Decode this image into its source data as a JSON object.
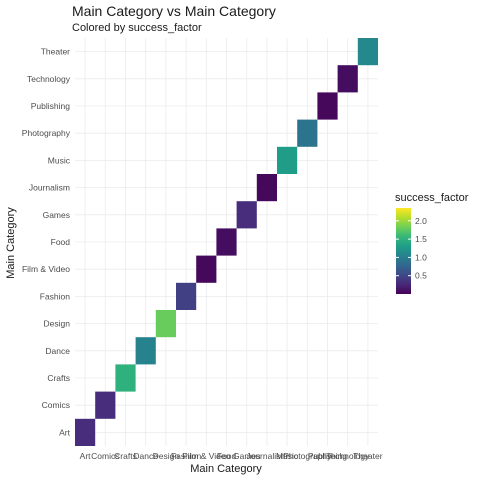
{
  "chart_data": {
    "type": "heatmap",
    "title": "Main Category vs Main Category",
    "subtitle": "Colored by success_factor",
    "xlabel": "Main Category",
    "ylabel": "Main Category",
    "categories": [
      "Art",
      "Comics",
      "Crafts",
      "Dance",
      "Design",
      "Fashion",
      "Film & Video",
      "Food",
      "Games",
      "Journalism",
      "Music",
      "Photography",
      "Publishing",
      "Technology",
      "Theater"
    ],
    "cells": [
      {
        "x": "Art",
        "y": "Art",
        "value": 0.3
      },
      {
        "x": "Comics",
        "y": "Comics",
        "value": 0.3
      },
      {
        "x": "Crafts",
        "y": "Crafts",
        "value": 1.5
      },
      {
        "x": "Dance",
        "y": "Dance",
        "value": 1.05
      },
      {
        "x": "Design",
        "y": "Design",
        "value": 1.8
      },
      {
        "x": "Fashion",
        "y": "Fashion",
        "value": 0.45
      },
      {
        "x": "Film & Video",
        "y": "Film & Video",
        "value": 0.05
      },
      {
        "x": "Food",
        "y": "Food",
        "value": 0.08
      },
      {
        "x": "Games",
        "y": "Games",
        "value": 0.3
      },
      {
        "x": "Journalism",
        "y": "Journalism",
        "value": 0.05
      },
      {
        "x": "Music",
        "y": "Music",
        "value": 1.3
      },
      {
        "x": "Photography",
        "y": "Photography",
        "value": 0.9
      },
      {
        "x": "Publishing",
        "y": "Publishing",
        "value": 0.05
      },
      {
        "x": "Technology",
        "y": "Technology",
        "value": 0.08
      },
      {
        "x": "Theater",
        "y": "Theater",
        "value": 1.1
      }
    ],
    "legend": {
      "title": "success_factor",
      "position": "right",
      "min": 0.0,
      "max": 2.35,
      "ticks": [
        0.5,
        1.0,
        1.5,
        2.0
      ],
      "tick_labels": [
        "0.5",
        "1.0",
        "1.5",
        "2.0"
      ],
      "palette": [
        "#440154",
        "#482878",
        "#3e4989",
        "#31688e",
        "#26828e",
        "#1f9e89",
        "#35b779",
        "#6ece58",
        "#b5de2b",
        "#fde725"
      ]
    },
    "grid": true
  }
}
